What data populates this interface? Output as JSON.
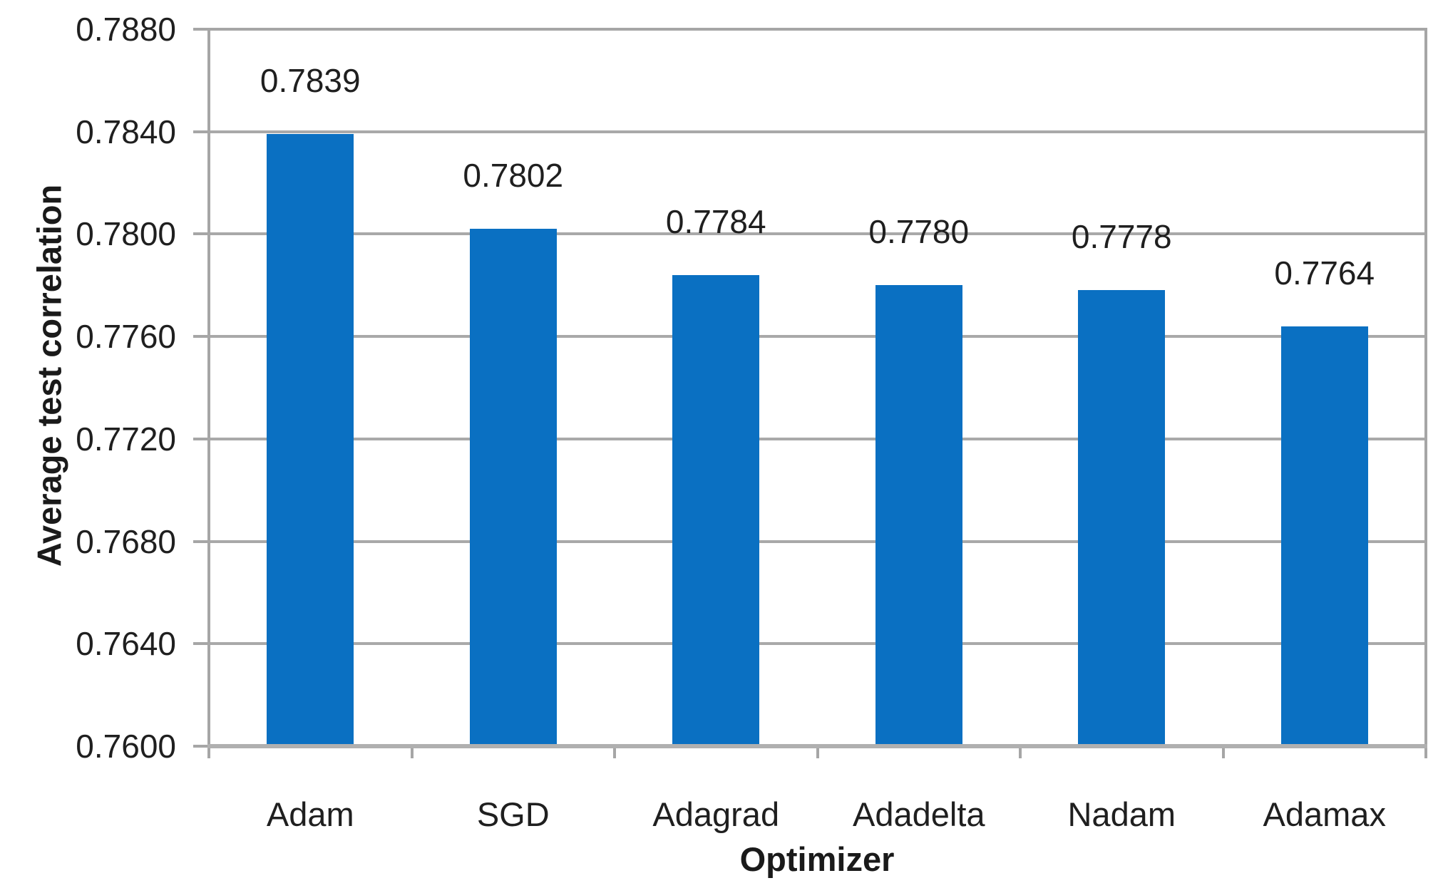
{
  "chart_data": {
    "type": "bar",
    "title": "",
    "xlabel": "Optimizer",
    "ylabel": "Average test correlation",
    "categories": [
      "Adam",
      "SGD",
      "Adagrad",
      "Adadelta",
      "Nadam",
      "Adamax"
    ],
    "values": [
      0.7839,
      0.7802,
      0.7784,
      0.778,
      0.7778,
      0.7764
    ],
    "bar_labels": [
      "0.7839",
      "0.7802",
      "0.7784",
      "0.7780",
      "0.7778",
      "0.7764"
    ],
    "ylim": [
      0.76,
      0.788
    ],
    "ytick_step": 0.004,
    "ytick_labels": [
      "0.7600",
      "0.7640",
      "0.7680",
      "0.7720",
      "0.7760",
      "0.7800",
      "0.7840",
      "0.7880"
    ],
    "grid": true,
    "legend": "none",
    "bar_color": "#0a70c2",
    "grid_color": "#a9a9a9",
    "axis_color": "#a6a6a6",
    "text_color": "#1f1f1f"
  }
}
